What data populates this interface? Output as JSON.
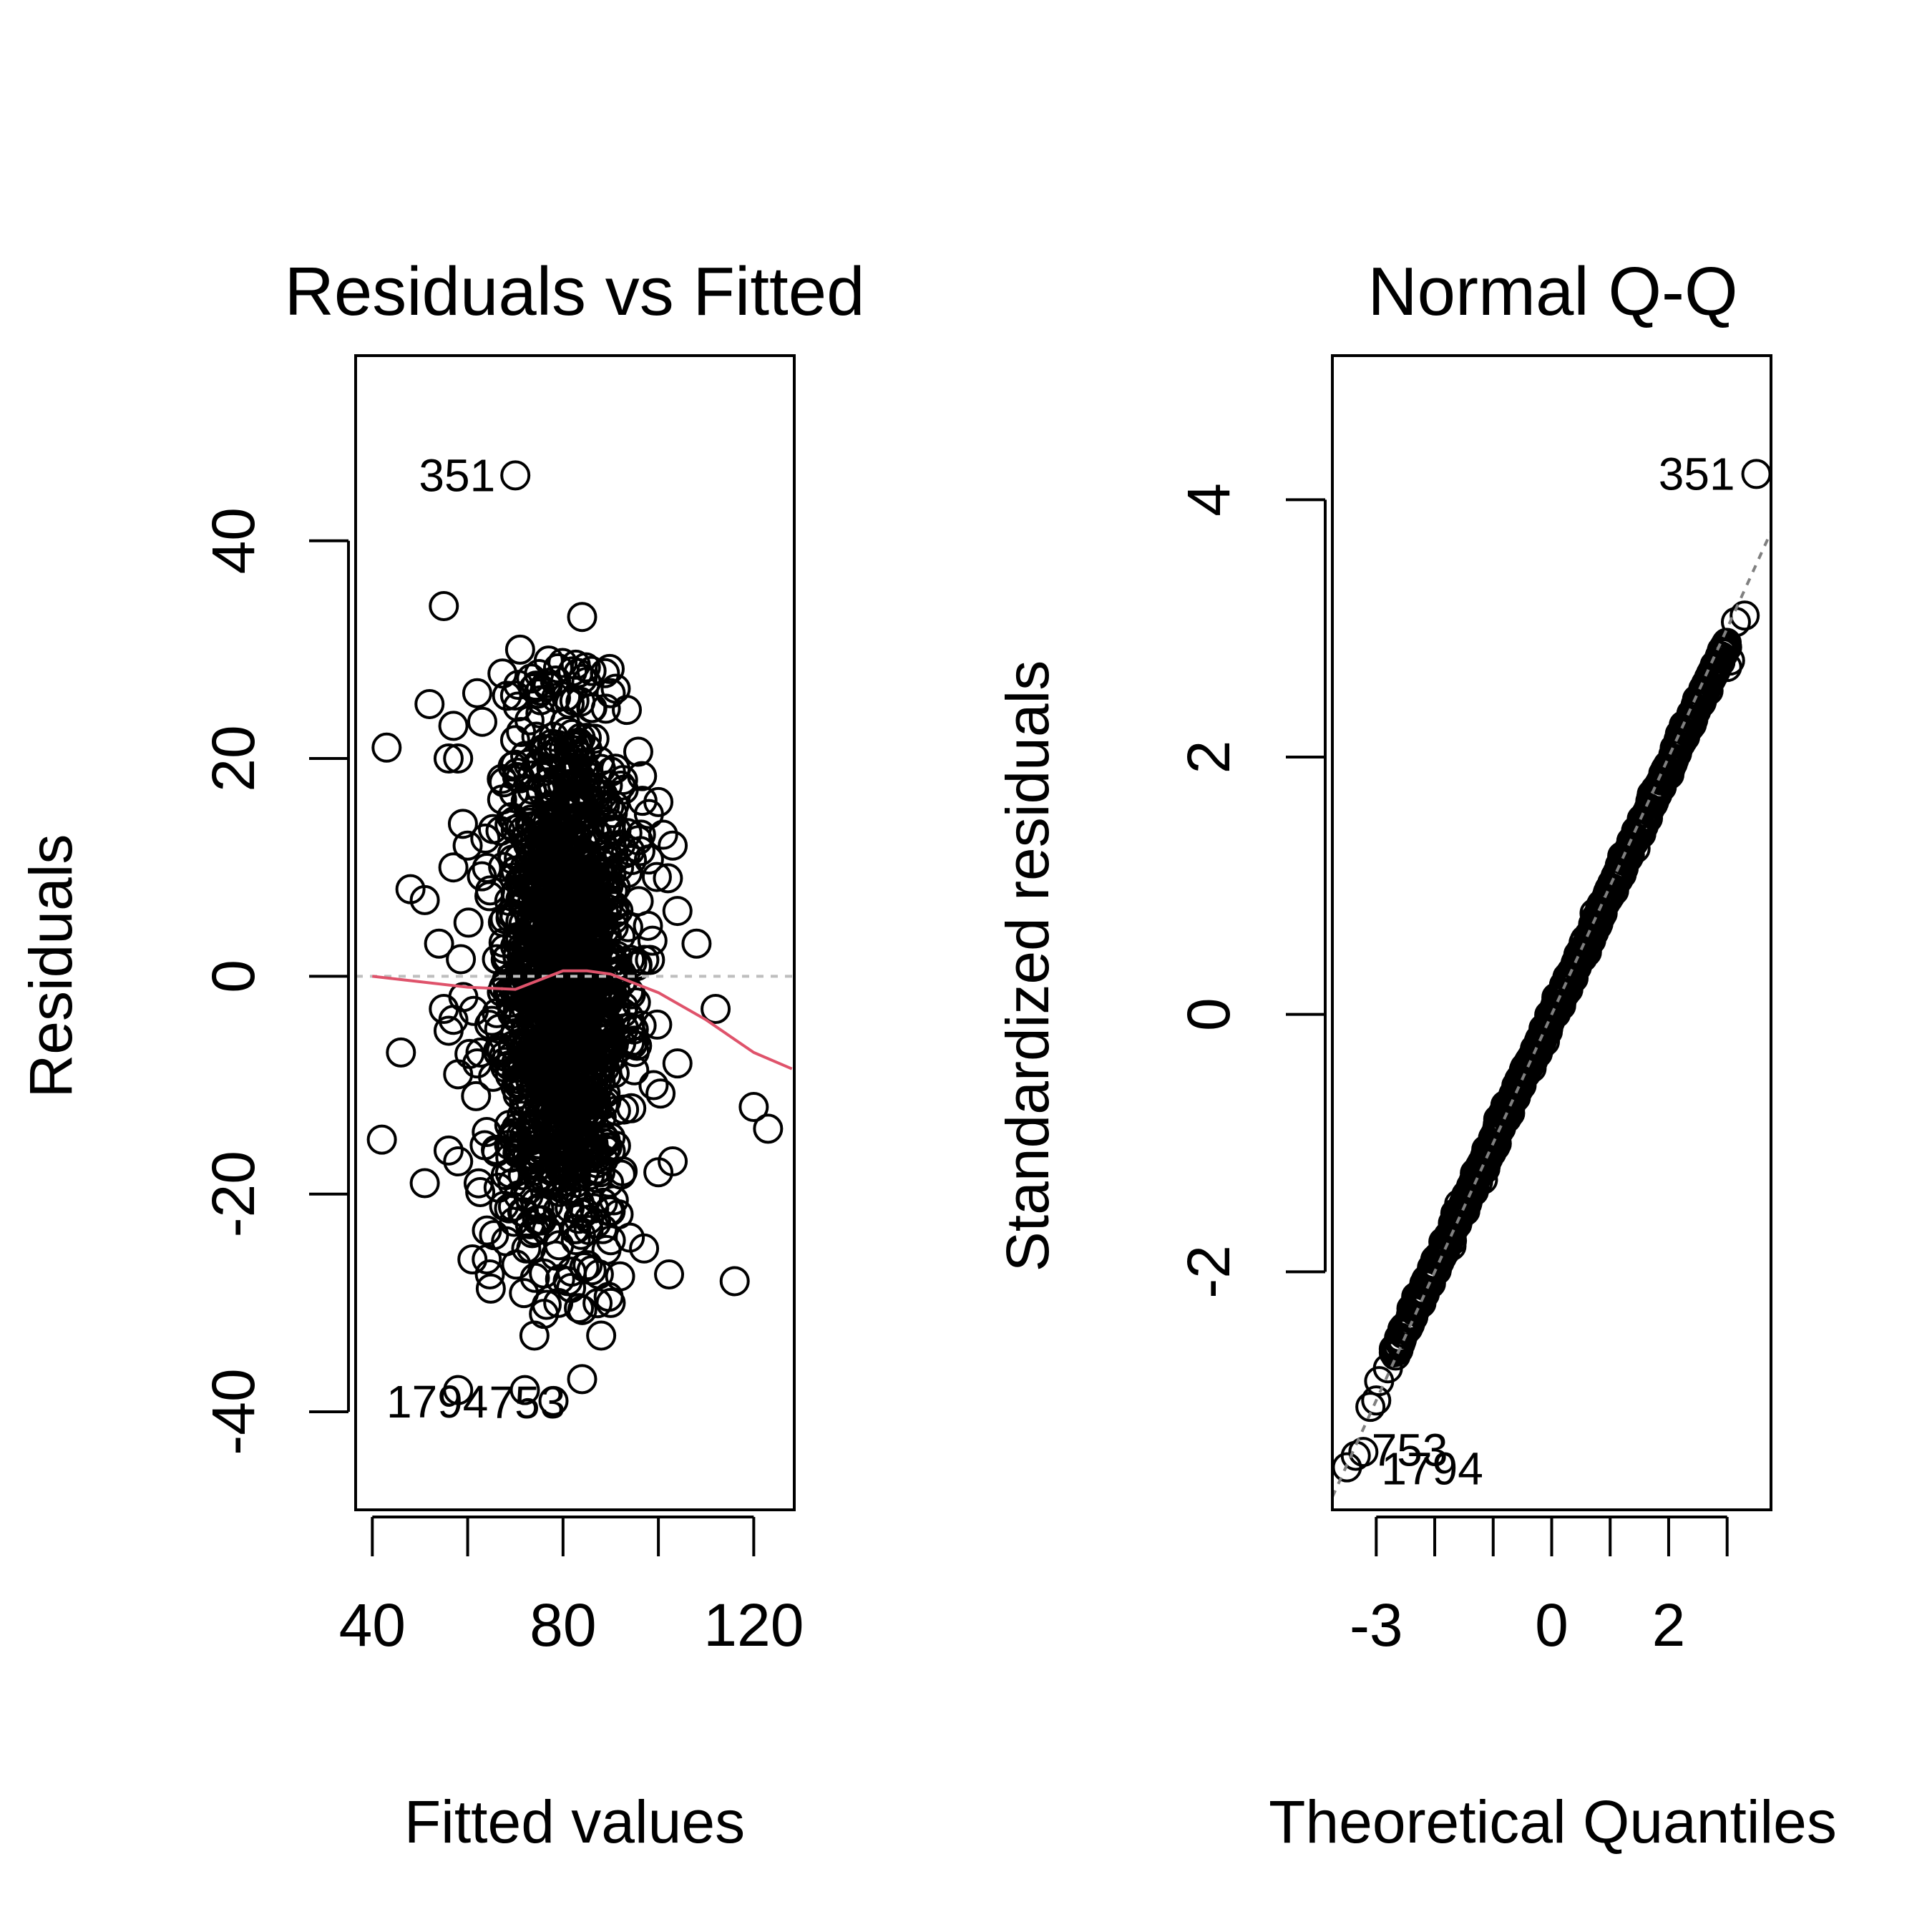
{
  "chart_data": [
    {
      "type": "scatter",
      "title": "Residuals vs Fitted",
      "xlabel": "Fitted values",
      "ylabel": "Residuals",
      "xlim": [
        36.5,
        128.5
      ],
      "ylim": [
        -49,
        57
      ],
      "xticks": [
        40,
        60,
        80,
        100,
        120
      ],
      "xtick_labels": [
        "40",
        "80",
        "120"
      ],
      "yticks": [
        -40,
        -20,
        0,
        20,
        40
      ],
      "ytick_labels": [
        "-40",
        "-20",
        "0",
        "20",
        "40"
      ],
      "reference_line": 0,
      "cluster": {
        "x_center": 80,
        "x_sd": 7,
        "y_sd": 12,
        "n": 1400
      },
      "points": [
        [
          70,
          46
        ],
        [
          55,
          34
        ],
        [
          43,
          21
        ],
        [
          62,
          26
        ],
        [
          52,
          25
        ],
        [
          57,
          23
        ],
        [
          56,
          20
        ],
        [
          58,
          20
        ],
        [
          48,
          8
        ],
        [
          51,
          7
        ],
        [
          54,
          3
        ],
        [
          46,
          -7
        ],
        [
          42,
          -15
        ],
        [
          51,
          -19
        ],
        [
          56,
          -16
        ],
        [
          58,
          -17
        ],
        [
          61,
          -26
        ],
        [
          64,
          -26
        ],
        [
          58,
          -38
        ],
        [
          72,
          -38
        ],
        [
          78,
          -39
        ],
        [
          84,
          -37
        ],
        [
          88,
          -33
        ],
        [
          94,
          -24
        ],
        [
          97,
          -25
        ],
        [
          112,
          -3
        ],
        [
          108,
          3
        ],
        [
          120,
          -12
        ],
        [
          123,
          -14
        ],
        [
          116,
          -28
        ],
        [
          103,
          -17
        ],
        [
          100,
          -18
        ],
        [
          90,
          26
        ],
        [
          84,
          33
        ],
        [
          82,
          28
        ],
        [
          77,
          29
        ],
        [
          71,
          30
        ],
        [
          74,
          -33
        ],
        [
          76,
          -31
        ],
        [
          79,
          -30
        ],
        [
          81,
          -28
        ],
        [
          86,
          -27
        ],
        [
          90,
          -30
        ],
        [
          60,
          12
        ],
        [
          59,
          14
        ],
        [
          57,
          10
        ],
        [
          62,
          -8
        ],
        [
          58,
          -9
        ],
        [
          56,
          -5
        ],
        [
          55,
          -3
        ],
        [
          57,
          -4
        ],
        [
          101,
          13
        ],
        [
          103,
          12
        ],
        [
          102,
          9
        ],
        [
          104,
          6
        ],
        [
          99,
          -10
        ],
        [
          104,
          -8
        ],
        [
          100,
          16
        ]
      ],
      "lowess": {
        "x": [
          40,
          50,
          60,
          70,
          80,
          85,
          90,
          100,
          110,
          120,
          128
        ],
        "y": [
          0,
          -0.5,
          -1,
          -1.2,
          0.5,
          0.5,
          0.2,
          -1.5,
          -4,
          -7,
          -8.5
        ]
      },
      "point_labels": [
        {
          "text": "351",
          "x": 70,
          "y": 46
        },
        {
          "text": "1794",
          "x": 52,
          "y": -40
        },
        {
          "text": "753",
          "x": 72,
          "y": -39
        }
      ]
    },
    {
      "type": "scatter",
      "title": "Normal Q-Q",
      "xlabel": "Theoretical Quantiles",
      "ylabel": "Standardized residuals",
      "xlim": [
        -3.75,
        3.75
      ],
      "ylim": [
        -3.85,
        5.12
      ],
      "xticks": [
        -3,
        -2,
        -1,
        0,
        1,
        2,
        3
      ],
      "xtick_labels": [
        "-3",
        "0",
        "2"
      ],
      "yticks": [
        -2,
        0,
        2,
        4
      ],
      "ytick_labels": [
        "-2",
        "0",
        "2",
        "4"
      ],
      "reference_line": {
        "slope": 1,
        "intercept": 0
      },
      "points": [
        [
          -3.5,
          -3.52
        ],
        [
          -3.35,
          -3.43
        ],
        [
          -3.22,
          -3.4
        ],
        [
          -3.1,
          -3.05
        ],
        [
          -3.0,
          -3.0
        ],
        [
          -2.95,
          -2.85
        ],
        [
          -2.8,
          -2.75
        ],
        [
          -2.7,
          -2.6
        ],
        [
          3.0,
          2.7
        ],
        [
          3.05,
          2.75
        ],
        [
          3.15,
          3.05
        ],
        [
          3.3,
          3.1
        ],
        [
          3.5,
          4.2
        ]
      ],
      "point_labels": [
        {
          "text": "351",
          "x": 3.5,
          "y": 4.2
        },
        {
          "text": "1794",
          "x": -3.5,
          "y": -3.52
        },
        {
          "text": "753",
          "x": -3.35,
          "y": -3.43
        }
      ]
    }
  ]
}
